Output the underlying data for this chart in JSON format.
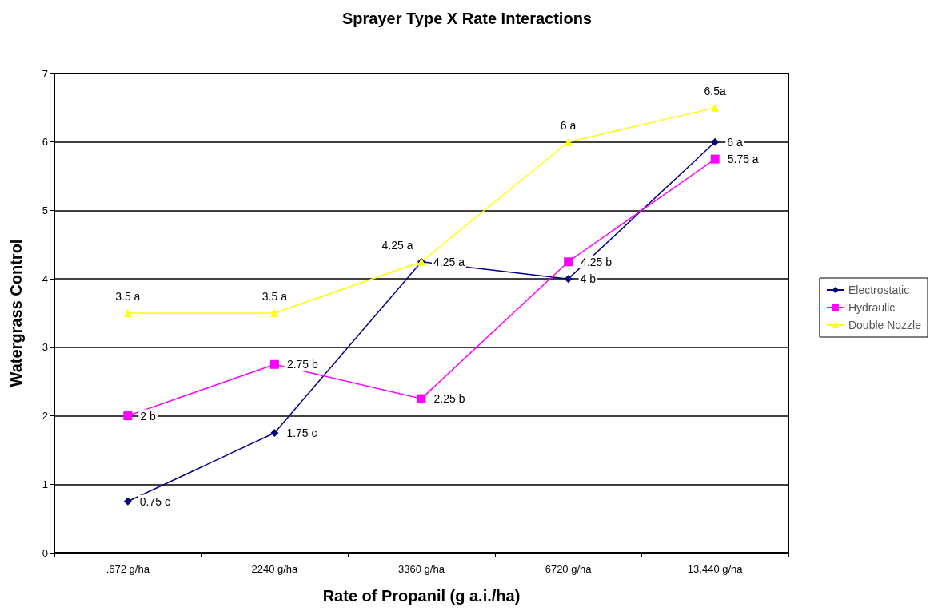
{
  "chart_data": {
    "type": "line",
    "title": "Sprayer Type X Rate Interactions",
    "xlabel": "Rate of Propanil (g a.i./ha)",
    "ylabel": "Watergrass Control",
    "categories": [
      ".672 g/ha",
      "2240 g/ha",
      "3360 g/ha",
      "6720 g/ha",
      "13,440 g/ha"
    ],
    "series": [
      {
        "name": "Electrostatic",
        "color": "#000080",
        "marker": "diamond",
        "values": [
          0.75,
          1.75,
          4.25,
          4,
          6
        ],
        "value_labels": [
          "0.75 c",
          "1.75 c",
          "4.25 a",
          "4 b",
          "6 a"
        ]
      },
      {
        "name": "Hydraulic",
        "color": "#ff00ff",
        "marker": "square",
        "values": [
          2,
          2.75,
          2.25,
          4.25,
          5.75
        ],
        "value_labels": [
          "2 b",
          "2.75 b",
          "2.25 b",
          "4.25 b",
          "5.75 a"
        ]
      },
      {
        "name": "Double Nozzle",
        "color": "#ffff00",
        "marker": "triangle",
        "values": [
          3.5,
          3.5,
          4.25,
          6,
          6.5
        ],
        "value_labels": [
          "3.5 a",
          "3.5 a",
          "4.25 a",
          "6 a",
          "6.5a"
        ]
      }
    ],
    "ylim": [
      0,
      7
    ],
    "yticks": [
      0,
      1,
      2,
      3,
      4,
      5,
      6,
      7
    ],
    "grid": "y",
    "legend": "right"
  }
}
